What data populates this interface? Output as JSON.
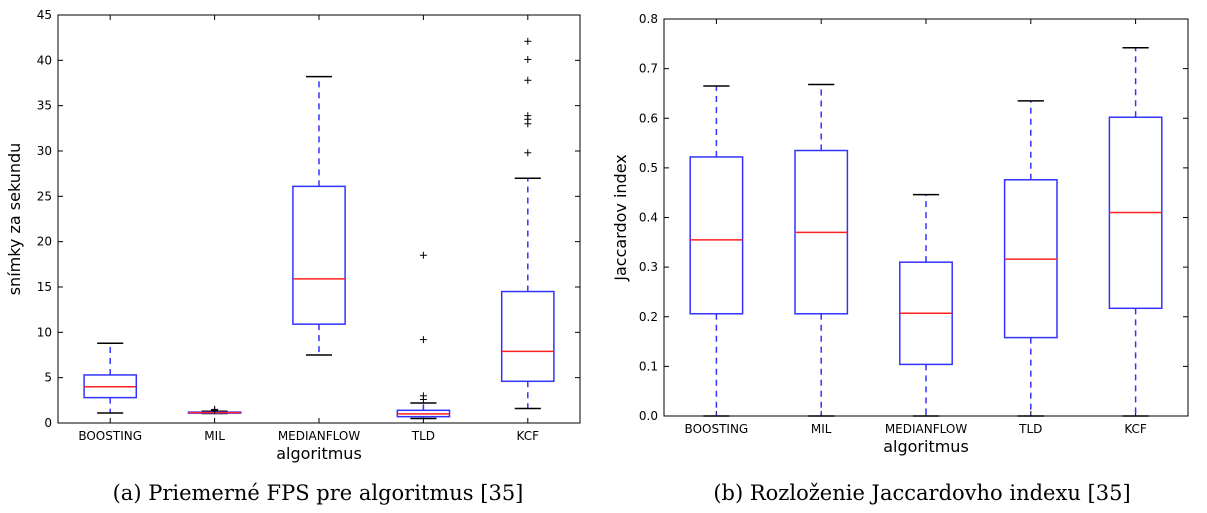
{
  "chart_data": [
    {
      "type": "box",
      "caption": "(a) Priemerné FPS pre algoritmus [35]",
      "xlabel": "algoritmus",
      "ylabel": "snímky za sekundu",
      "ylim": [
        0,
        45
      ],
      "yticks": [
        "0",
        "5",
        "10",
        "15",
        "20",
        "25",
        "30",
        "35",
        "40",
        "45"
      ],
      "categories": [
        "BOOSTING",
        "MIL",
        "MEDIANFLOW",
        "TLD",
        "KCF"
      ],
      "boxes": [
        {
          "whislo": 1.1,
          "q1": 2.8,
          "med": 4.0,
          "q3": 5.3,
          "whishi": 8.8,
          "fliers": []
        },
        {
          "whislo": 1.05,
          "q1": 1.1,
          "med": 1.15,
          "q3": 1.2,
          "whishi": 1.3,
          "fliers": [
            1.4,
            1.5
          ]
        },
        {
          "whislo": 7.5,
          "q1": 10.9,
          "med": 15.9,
          "q3": 26.1,
          "whishi": 38.2,
          "fliers": []
        },
        {
          "whislo": 0.5,
          "q1": 0.7,
          "med": 1.0,
          "q3": 1.4,
          "whishi": 2.2,
          "fliers": [
            2.6,
            3.0,
            9.2,
            18.5
          ]
        },
        {
          "whislo": 1.6,
          "q1": 4.6,
          "med": 7.9,
          "q3": 14.5,
          "whishi": 27.0,
          "fliers": [
            29.8,
            33.0,
            33.5,
            33.9,
            37.8,
            40.1,
            42.1
          ]
        }
      ]
    },
    {
      "type": "box",
      "caption": "(b) Rozloženie Jaccardovho indexu [35]",
      "xlabel": "algoritmus",
      "ylabel": "Jaccardov index",
      "ylim": [
        0,
        0.8
      ],
      "yticks": [
        "0.0",
        "0.1",
        "0.2",
        "0.3",
        "0.4",
        "0.5",
        "0.6",
        "0.7",
        "0.8"
      ],
      "categories": [
        "BOOSTING",
        "MIL",
        "MEDIANFLOW",
        "TLD",
        "KCF"
      ],
      "boxes": [
        {
          "whislo": 0.0,
          "q1": 0.206,
          "med": 0.355,
          "q3": 0.522,
          "whishi": 0.665,
          "fliers": []
        },
        {
          "whislo": 0.0,
          "q1": 0.206,
          "med": 0.37,
          "q3": 0.535,
          "whishi": 0.668,
          "fliers": []
        },
        {
          "whislo": 0.0,
          "q1": 0.104,
          "med": 0.207,
          "q3": 0.31,
          "whishi": 0.446,
          "fliers": []
        },
        {
          "whislo": 0.0,
          "q1": 0.158,
          "med": 0.316,
          "q3": 0.476,
          "whishi": 0.635,
          "fliers": []
        },
        {
          "whislo": 0.0,
          "q1": 0.217,
          "med": 0.41,
          "q3": 0.602,
          "whishi": 0.742,
          "fliers": []
        }
      ]
    }
  ],
  "colors": {
    "box": "#3333ff",
    "median": "#ff2020",
    "flier": "#000000"
  }
}
